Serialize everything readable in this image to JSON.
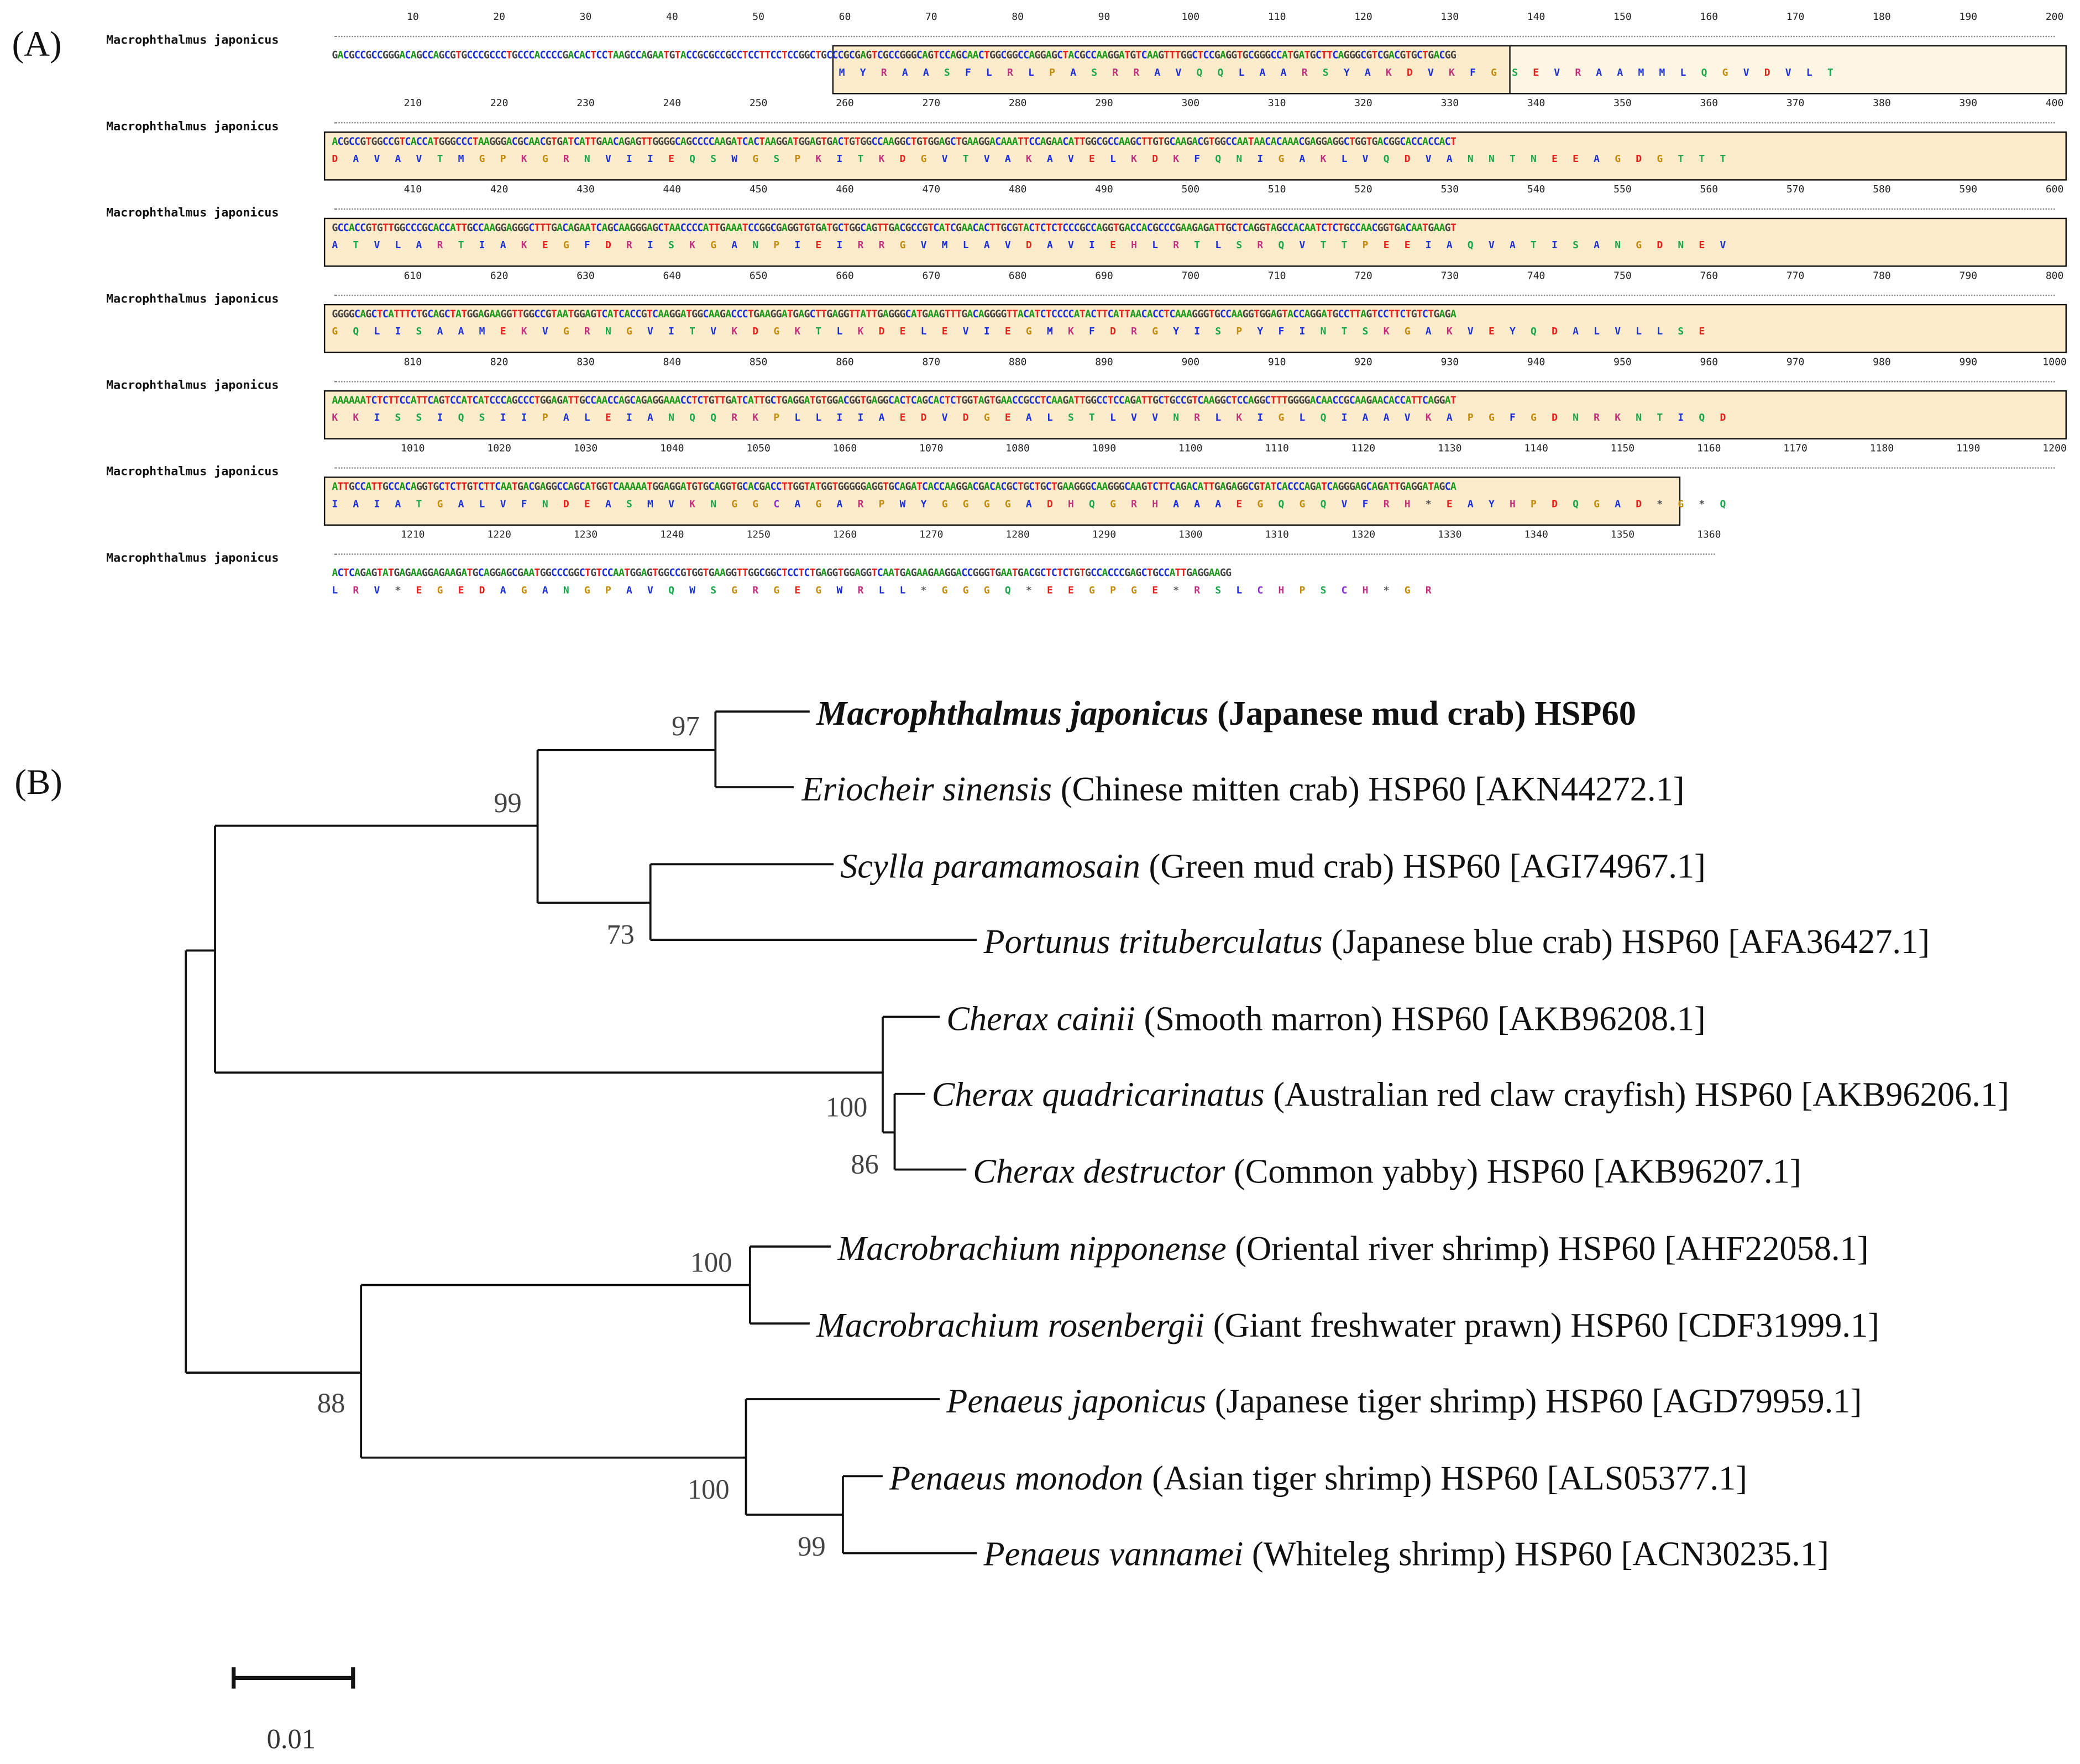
{
  "panels": {
    "a_label": "(A)",
    "b_label": "(B)"
  },
  "alignment": {
    "species": "Macrophthalmus japonicus",
    "rows": [
      {
        "ticks": [
          "10",
          "20",
          "30",
          "40",
          "50",
          "60",
          "70",
          "80",
          "90",
          "100",
          "110",
          "120",
          "130",
          "140",
          "150",
          "160",
          "170",
          "180",
          "190",
          "200"
        ],
        "dna": "GACGCCGCCGGGACAGCCAGCGTGCCCGCCCTGCCCACCCCGACACTCCTAAGCCAGAATGTACCGCGCCGCCTCCTTCCTCCGGCTGCCCGCGAGTCGCCGGGCAGTCCAGCAACTGGCGGCCAGGAGCTACGCCAAGGATGTCAAGTTTGGCTCCGAGGTGCGGGCCATGATGCTTCAGGGCGTCGACGTGCTGACGG",
        "aa": "M Y R A A S F L R L P A S R R A V Q Q L A A R S Y A K D V K F G S E V R A A M M L Q G V D V L T"
      },
      {
        "ticks": [
          "210",
          "220",
          "230",
          "240",
          "250",
          "260",
          "270",
          "280",
          "290",
          "300",
          "310",
          "320",
          "330",
          "340",
          "350",
          "360",
          "370",
          "380",
          "390",
          "400"
        ],
        "dna": "ACGCCGTGGCCGTCACCATGGGCCCTAAGGGACGCAACGTGATCATTGAACAGAGTTGGGGCAGCCCCAAGATCACTAAGGATGGAGTGACTGTGGCCAAGGCTGTGGAGCTGAAGGACAAATTCCAGAACATTGGCGCCAAGCTTGTGCAAGACGTGGCCAATAACACAAACGAGGAGGCTGGTGACGGCACCACCACT",
        "aa": "D A V A V T M G P K G R N V I I E Q S W G S P K I T K D G V T V A K A V E L K D K F Q N I G A K L V Q D V A N N T N E E A G D G T T T"
      },
      {
        "ticks": [
          "410",
          "420",
          "430",
          "440",
          "450",
          "460",
          "470",
          "480",
          "490",
          "500",
          "510",
          "520",
          "530",
          "540",
          "550",
          "560",
          "570",
          "580",
          "590",
          "600"
        ],
        "dna": "GCCACCGTGTTGGCCCGCACCATTGCCAAGGAGGGCTTTGACAGAATCAGCAAGGGAGCTAACCCCATTGAAATCCGGCGAGGTGTGATGCTGGCAGTTGACGCCGTCATCGAACACTTGCGTACTCTCTCCCGCCAGGTGACCACGCCCGAAGAGATTGCTCAGGTAGCCACAATCTCTGCCAACGGTGACAATGAAGT",
        "aa": "A T V L A R T I A K E G F D R I S K G A N P I E I R R G V M L A V D A V I E H L R T L S R Q V T T P E E I A Q V A T I S A N G D N E V"
      },
      {
        "ticks": [
          "610",
          "620",
          "630",
          "640",
          "650",
          "660",
          "670",
          "680",
          "690",
          "700",
          "710",
          "720",
          "730",
          "740",
          "750",
          "760",
          "770",
          "780",
          "790",
          "800"
        ],
        "dna": "GGGGCAGCTCATTTCTGCAGCTATGGAGAAGGTTGGCCGTAATGGAGTCATCACCGTCAAGGATGGCAAGACCCTGAAGGATGAGCTTGAGGTTATTGAGGGCATGAAGTTTGACAGGGGTTACATCTCCCCATACTTCATTAACACCTCAAAGGGTGCCAAGGTGGAGTACCAGGATGCCTTAGTCCTTCTGTCTGAGA",
        "aa": "G Q L I S A A M E K V G R N G V I T V K D G K T L K D E L E V I E G M K F D R G Y I S P Y F I N T S K G A K V E Y Q D A L V L L S E"
      },
      {
        "ticks": [
          "810",
          "820",
          "830",
          "840",
          "850",
          "860",
          "870",
          "880",
          "890",
          "900",
          "910",
          "920",
          "930",
          "940",
          "950",
          "960",
          "970",
          "980",
          "990",
          "1000"
        ],
        "dna": "AAAAAATCTCTTCCATTCAGTCCATCATCCCAGCCCTGGAGATTGCCAACCAGCAGAGGAAACCTCTGTTGATCATTGCTGAGGATGTGGACGGTGAGGCACTCAGCACTCTGGTAGTGAACCGCCTCAAGATTGGCCTCCAGATTGCTGCCGTCAAGGCTCCAGGCTTTGGGGACAACCGCAAGAACACCATTCAGGAT",
        "aa": "K K I S S I Q S I I P A L E I A N Q Q R K P L L I I A E D V D G E A L S T L V V N R L K I G L Q I A A V K A P G F G D N R K N T I Q D"
      },
      {
        "ticks": [
          "1010",
          "1020",
          "1030",
          "1040",
          "1050",
          "1060",
          "1070",
          "1080",
          "1090",
          "1100",
          "1110",
          "1120",
          "1130",
          "1140",
          "1150",
          "1160",
          "1170",
          "1180",
          "1190",
          "1200"
        ],
        "dna": "ATTGCCATTGCCACAGGTGCTCTTGTCTTCAATGACGAGGCCAGCATGGTCAAAAATGGAGGATGTGCAGGTGCACGACCTTGGTATGGTGGGGGAGGTGCAGATCACCAAGGACGACACGCTGCTGCTGAAGGGCAAGGGCAAGTCTTCAGACATTGAGAGGCGTATCACCCAGATCAGGGAGCAGATTGAGGATAGCA",
        "aa": "I A I A T G A L V F N D E A S M V K N G G C A G A R P W Y G G G G A D H Q G R H A A A E G Q G Q V F R H * E A Y H P D Q G A D * G * Q"
      },
      {
        "ticks": [
          "1210",
          "1220",
          "1230",
          "1240",
          "1250",
          "1260",
          "1270",
          "1280",
          "1290",
          "1300",
          "1310",
          "1320",
          "1330",
          "1340",
          "1350",
          "1360"
        ],
        "dna": "ACTCAGAGTATGAGAAGGAGAAGATGCAGGAGCGAATGGCCCGGCTGTCCAATGGAGTGGCCGTGGTGAAGGTTGGCGGCTCCTCTGAGGTGGAGGTCAATGAGAAGAAGGACCGGGTGAATGACGCTCTCTGTGCCACCCGAGCTGCCATTGAGGAAGG",
        "aa": "L R V * E G E D A G A N G P A V Q W S G R G E G W R L L * G G G Q * E E G P G E * R S L C H P S C H * G R"
      }
    ]
  },
  "tree": {
    "taxa": [
      {
        "sci": "Macrophthalmus japonicus",
        "rest": "(Japanese mud crab) HSP60",
        "bold": true
      },
      {
        "sci": "Eriocheir sinensis",
        "rest": "(Chinese mitten crab) HSP60 [AKN44272.1]",
        "bold": false
      },
      {
        "sci": "Scylla paramamosain",
        "rest": "(Green mud crab) HSP60 [AGI74967.1]",
        "bold": false
      },
      {
        "sci": "Portunus trituberculatus",
        "rest": "(Japanese blue crab) HSP60 [AFA36427.1]",
        "bold": false
      },
      {
        "sci": "Cherax cainii",
        "rest": "(Smooth marron) HSP60 [AKB96208.1]",
        "bold": false
      },
      {
        "sci": "Cherax quadricarinatus",
        "rest": "(Australian red claw crayfish) HSP60 [AKB96206.1]",
        "bold": false
      },
      {
        "sci": "Cherax destructor",
        "rest": "(Common yabby) HSP60 [AKB96207.1]",
        "bold": false
      },
      {
        "sci": "Macrobrachium nipponense",
        "rest": "(Oriental river shrimp) HSP60 [AHF22058.1]",
        "bold": false
      },
      {
        "sci": "Macrobrachium rosenbergii",
        "rest": "(Giant freshwater prawn) HSP60 [CDF31999.1]",
        "bold": false
      },
      {
        "sci": "Penaeus japonicus",
        "rest": "(Japanese tiger shrimp) HSP60 [AGD79959.1]",
        "bold": false
      },
      {
        "sci": "Penaeus monodon",
        "rest": "(Asian tiger shrimp) HSP60 [ALS05377.1]",
        "bold": false
      },
      {
        "sci": "Penaeus vannamei",
        "rest": "(Whiteleg shrimp) HSP60 [ACN30235.1]",
        "bold": false
      }
    ],
    "bootstraps": {
      "macrophthalmus_eriocheir": "97",
      "crab_clade": "99",
      "scylla_portunus": "73",
      "cherax_clade": "100",
      "cherax_pair": "86",
      "macrobrachium": "100",
      "shrimp_clade": "88",
      "penaeus_clade": "100",
      "penaeus_pair": "99"
    },
    "scale_bar_label": "0.01"
  }
}
